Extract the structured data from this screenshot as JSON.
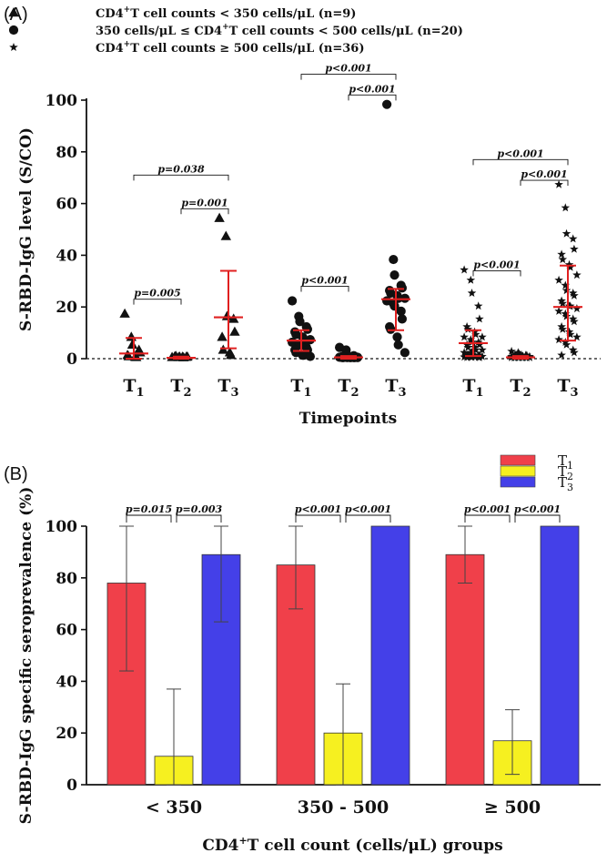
{
  "chart_data": [
    {
      "panel": "(A)",
      "type": "scatter",
      "ylabel": "S-RBD-IgG level (S/CO)",
      "xlabel": "Timepoints",
      "ylim": [
        0,
        100
      ],
      "yticks": [
        "0",
        "20",
        "40",
        "60",
        "80",
        "100"
      ],
      "legend": [
        {
          "marker": "triangle",
          "pre": "CD4",
          "sup": "+",
          "post": "T cell counts < 350 cells/μL (n=9)"
        },
        {
          "marker": "circle",
          "pre": "350 cells/μL ≤ CD4",
          "sup": "+",
          "post": "T cell counts < 500 cells/μL (n=20)"
        },
        {
          "marker": "star",
          "pre": "CD4",
          "sup": "+",
          "post": "T cell counts ≥ 500 cells/μL (n=36)"
        }
      ],
      "groups": [
        {
          "marker": "triangle",
          "timepoints": [
            {
              "label": "T",
              "sub": "1",
              "median": 2,
              "q1": 0,
              "q3": 8,
              "points": [
                17,
                8,
                5,
                3,
                2,
                1,
                0.5,
                0.3,
                0.2
              ]
            },
            {
              "label": "T",
              "sub": "2",
              "median": 0.3,
              "q1": 0,
              "q3": 0.8,
              "points": [
                0.2,
                0.2,
                0.3,
                0.3,
                0.4,
                0.5,
                0.6,
                0.3,
                0.1
              ]
            },
            {
              "label": "T",
              "sub": "3",
              "median": 16,
              "q1": 4,
              "q3": 34,
              "points": [
                54,
                47,
                16,
                15,
                10,
                8,
                3,
                2,
                1
              ]
            }
          ],
          "comparisons": [
            {
              "from": 0,
              "to": 1,
              "text": "p=0.005",
              "y": 23
            },
            {
              "from": 1,
              "to": 2,
              "text": "p=0.001",
              "y": 58
            },
            {
              "from": 0,
              "to": 2,
              "text": "p=0.038",
              "y": 71
            }
          ]
        },
        {
          "marker": "circle",
          "timepoints": [
            {
              "label": "T",
              "sub": "1",
              "median": 7,
              "q1": 3,
              "q3": 11,
              "points": [
                22,
                16,
                14,
                12,
                11,
                10,
                9,
                8,
                7,
                7,
                6,
                5,
                5,
                4,
                3,
                3,
                2,
                1,
                1,
                0.5
              ]
            },
            {
              "label": "T",
              "sub": "2",
              "median": 0.5,
              "q1": 0,
              "q3": 1,
              "points": [
                4,
                3,
                1,
                0.8,
                0.5,
                0.5,
                0.4,
                0.3,
                0.3,
                0.2,
                0.2,
                0.2,
                0.1,
                0.1,
                0.1,
                0.1,
                0.1,
                0.1,
                0.1,
                0.1
              ]
            },
            {
              "label": "T",
              "sub": "3",
              "median": 23,
              "q1": 11,
              "q3": 27,
              "points": [
                98,
                38,
                32,
                28,
                27,
                26,
                25,
                24,
                23,
                23,
                22,
                21,
                20,
                18,
                15,
                12,
                11,
                8,
                5,
                2
              ]
            }
          ],
          "comparisons": [
            {
              "from": 0,
              "to": 1,
              "text": "p<0.001",
              "y": 28
            },
            {
              "from": 1,
              "to": 2,
              "text": "p<0.001",
              "y": 102
            },
            {
              "from": 0,
              "to": 2,
              "text": "p<0.001",
              "y": 110
            }
          ]
        },
        {
          "marker": "star",
          "timepoints": [
            {
              "label": "T",
              "sub": "1",
              "median": 6,
              "q1": 1,
              "q3": 11,
              "points": [
                34,
                30,
                25,
                20,
                15,
                12,
                11,
                10,
                9,
                8,
                8,
                7,
                6,
                6,
                5,
                5,
                4,
                4,
                3,
                3,
                2,
                2,
                2,
                1,
                1,
                1,
                1,
                0.5,
                0.5,
                0.5,
                0.3,
                0.3,
                0.2,
                0.2,
                0.1,
                0.1
              ]
            },
            {
              "label": "T",
              "sub": "2",
              "median": 0.5,
              "q1": 0,
              "q3": 1,
              "points": [
                2.5,
                2,
                1.5,
                1,
                1,
                0.8,
                0.8,
                0.6,
                0.6,
                0.5,
                0.5,
                0.5,
                0.4,
                0.4,
                0.4,
                0.3,
                0.3,
                0.3,
                0.3,
                0.2,
                0.2,
                0.2,
                0.2,
                0.2,
                0.1,
                0.1,
                0.1,
                0.1,
                0.1,
                0.1,
                0.1,
                0.1,
                0.1,
                0.1,
                0.1,
                0.1
              ]
            },
            {
              "label": "T",
              "sub": "3",
              "median": 20,
              "q1": 7,
              "q3": 36,
              "points": [
                67,
                58,
                48,
                46,
                42,
                40,
                38,
                36,
                35,
                32,
                30,
                28,
                26,
                25,
                24,
                22,
                21,
                20,
                20,
                19,
                18,
                17,
                16,
                15,
                14,
                12,
                11,
                10,
                9,
                8,
                7,
                6,
                5,
                3,
                2,
                1
              ]
            }
          ],
          "comparisons": [
            {
              "from": 0,
              "to": 1,
              "text": "p<0.001",
              "y": 34
            },
            {
              "from": 1,
              "to": 2,
              "text": "p<0.001",
              "y": 69
            },
            {
              "from": 0,
              "to": 2,
              "text": "p<0.001",
              "y": 77
            }
          ]
        }
      ]
    },
    {
      "panel": "(B)",
      "type": "bar",
      "ylabel": "S-RBD-IgG specific seroprevalence (%)",
      "xlabel_pre": "CD4",
      "xlabel_sup": "+",
      "xlabel_post": "T cell count (cells/μL) groups",
      "ylim": [
        0,
        100
      ],
      "yticks": [
        "0",
        "20",
        "40",
        "60",
        "80",
        "100"
      ],
      "categories": [
        "< 350",
        "350 - 500",
        "≥ 500"
      ],
      "series": [
        {
          "name": "T",
          "sub": "1",
          "color": "#f0404a",
          "values": [
            78,
            85,
            89
          ],
          "err_low": [
            44,
            68,
            78
          ],
          "err_high": [
            100,
            100,
            100
          ]
        },
        {
          "name": "T",
          "sub": "2",
          "color": "#f6f020",
          "values": [
            11,
            20,
            17
          ],
          "err_low": [
            0,
            0,
            4
          ],
          "err_high": [
            37,
            39,
            29
          ]
        },
        {
          "name": "T",
          "sub": "3",
          "color": "#4440e8",
          "values": [
            89,
            100,
            100
          ],
          "err_low": [
            63,
            100,
            100
          ],
          "err_high": [
            100,
            100,
            100
          ]
        }
      ],
      "comparisons": [
        [
          "p=0.015",
          "p=0.003"
        ],
        [
          "p<0.001",
          "p<0.001"
        ],
        [
          "p<0.001",
          "p<0.001"
        ]
      ]
    }
  ]
}
